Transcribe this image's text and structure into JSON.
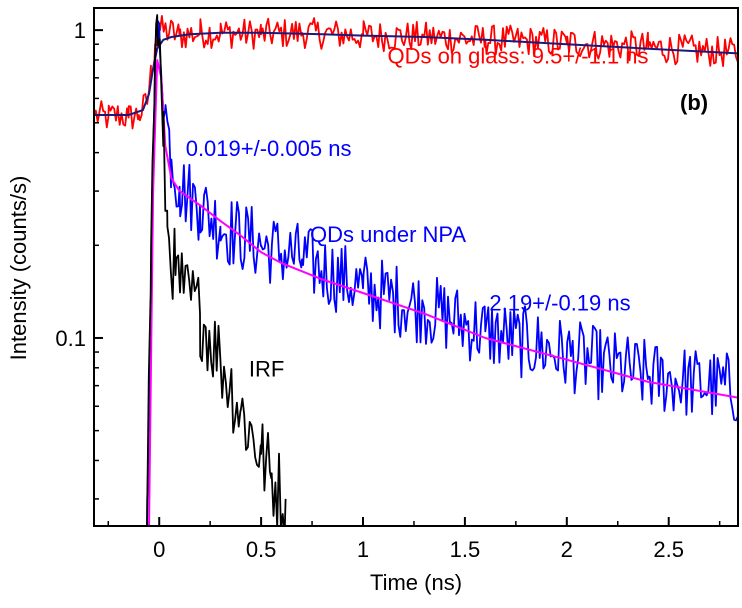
{
  "chart_data": {
    "type": "line",
    "xlabel": "Time (ns)",
    "ylabel": "Intensity (counts/s)",
    "xlim": [
      -0.32,
      2.84
    ],
    "ylim": [
      0.0245,
      1.18
    ],
    "y_scale": "log",
    "grid": false,
    "legend": "none",
    "x_ticks": [
      {
        "value": 0,
        "label": "0"
      },
      {
        "value": 0.5,
        "label": "0.5"
      },
      {
        "value": 1,
        "label": "1"
      },
      {
        "value": 1.5,
        "label": "1.5"
      },
      {
        "value": 2,
        "label": "2"
      },
      {
        "value": 2.5,
        "label": "2.5"
      }
    ],
    "y_ticks": [
      {
        "value": 1,
        "label": "1"
      },
      {
        "value": 0.1,
        "label": "0.1"
      }
    ],
    "panel_label": "(b)",
    "annotations": {
      "glass": {
        "text": "QDs on glass: 9.5+/-1.1 ns",
        "color": "#ff0000",
        "x": 1.12,
        "y": 0.78
      },
      "fast": {
        "text": "0.019+/-0.005 ns",
        "color": "#0000ff",
        "x": 0.13,
        "y": 0.39
      },
      "npa": {
        "text": "QDs under NPA",
        "color": "#0000ff",
        "x": 0.74,
        "y": 0.205
      },
      "slow": {
        "text": "2.19+/-0.19 ns",
        "color": "#0000ff",
        "x": 1.62,
        "y": 0.123
      },
      "irf": {
        "text": "IRF",
        "color": "#000000",
        "x": 0.44,
        "y": 0.075
      }
    },
    "series": [
      {
        "color": "#ff0000",
        "kind": "data",
        "points": [
          [
            -0.32,
            0.53
          ],
          [
            -0.25,
            0.52
          ],
          [
            -0.2,
            0.53
          ],
          [
            -0.15,
            0.52
          ],
          [
            -0.1,
            0.53
          ],
          [
            -0.06,
            0.58
          ],
          [
            -0.04,
            0.72
          ],
          [
            -0.02,
            0.9
          ],
          [
            0.0,
            1.0
          ],
          [
            0.05,
            0.99
          ],
          [
            0.1,
            0.96
          ],
          [
            0.2,
            0.98
          ],
          [
            0.3,
            0.98
          ],
          [
            0.5,
            0.97
          ],
          [
            0.7,
            0.98
          ],
          [
            1.0,
            0.96
          ],
          [
            1.3,
            0.95
          ],
          [
            1.6,
            0.93
          ],
          [
            2.0,
            0.91
          ],
          [
            2.4,
            0.88
          ],
          [
            2.84,
            0.84
          ]
        ],
        "noise": 0.05
      },
      {
        "color": "#1a1a7a",
        "kind": "fit",
        "points": [
          [
            -0.32,
            0.53
          ],
          [
            -0.15,
            0.53
          ],
          [
            -0.08,
            0.55
          ],
          [
            -0.05,
            0.62
          ],
          [
            -0.03,
            0.75
          ],
          [
            -0.01,
            0.87
          ],
          [
            0.02,
            0.93
          ],
          [
            0.06,
            0.95
          ],
          [
            0.15,
            0.97
          ],
          [
            0.3,
            0.98
          ],
          [
            0.5,
            0.98
          ],
          [
            0.8,
            0.97
          ],
          [
            1.0,
            0.96
          ],
          [
            1.3,
            0.95
          ],
          [
            1.6,
            0.93
          ],
          [
            2.0,
            0.9
          ],
          [
            2.4,
            0.87
          ],
          [
            2.84,
            0.84
          ]
        ],
        "noise": 0
      },
      {
        "color": "#0000ff",
        "kind": "data",
        "points": [
          [
            -0.32,
            0.024
          ],
          [
            -0.06,
            0.024
          ],
          [
            -0.04,
            0.15
          ],
          [
            -0.02,
            0.8
          ],
          [
            0.0,
            1.05
          ],
          [
            0.03,
            0.55
          ],
          [
            0.06,
            0.38
          ],
          [
            0.1,
            0.31
          ],
          [
            0.2,
            0.27
          ],
          [
            0.3,
            0.23
          ],
          [
            0.5,
            0.2
          ],
          [
            0.7,
            0.18
          ],
          [
            1.0,
            0.145
          ],
          [
            1.3,
            0.125
          ],
          [
            1.6,
            0.105
          ],
          [
            2.0,
            0.088
          ],
          [
            2.4,
            0.075
          ],
          [
            2.84,
            0.068
          ]
        ],
        "noise": 0.12
      },
      {
        "color": "#ff00ff",
        "kind": "fit",
        "points": [
          [
            -0.05,
            0.024
          ],
          [
            -0.03,
            0.3
          ],
          [
            -0.01,
            0.8
          ],
          [
            0.01,
            0.7
          ],
          [
            0.03,
            0.42
          ],
          [
            0.06,
            0.33
          ],
          [
            0.1,
            0.3
          ],
          [
            0.2,
            0.27
          ],
          [
            0.3,
            0.24
          ],
          [
            0.4,
            0.215
          ],
          [
            0.5,
            0.19
          ],
          [
            0.6,
            0.175
          ],
          [
            0.8,
            0.155
          ],
          [
            1.0,
            0.14
          ],
          [
            1.3,
            0.12
          ],
          [
            1.6,
            0.1
          ],
          [
            2.0,
            0.085
          ],
          [
            2.4,
            0.072
          ],
          [
            2.84,
            0.064
          ]
        ],
        "noise": 0
      },
      {
        "color": "#000000",
        "kind": "data",
        "points": [
          [
            -0.06,
            0.024
          ],
          [
            -0.04,
            0.2
          ],
          [
            -0.02,
            0.8
          ],
          [
            -0.01,
            1.12
          ],
          [
            0.0,
            0.9
          ],
          [
            0.02,
            0.42
          ],
          [
            0.04,
            0.23
          ],
          [
            0.08,
            0.16
          ],
          [
            0.12,
            0.14
          ],
          [
            0.2,
            0.12
          ],
          [
            0.3,
            0.085
          ],
          [
            0.4,
            0.058
          ],
          [
            0.5,
            0.042
          ],
          [
            0.55,
            0.035
          ],
          [
            0.62,
            0.03
          ]
        ],
        "noise": 0.14
      }
    ]
  }
}
